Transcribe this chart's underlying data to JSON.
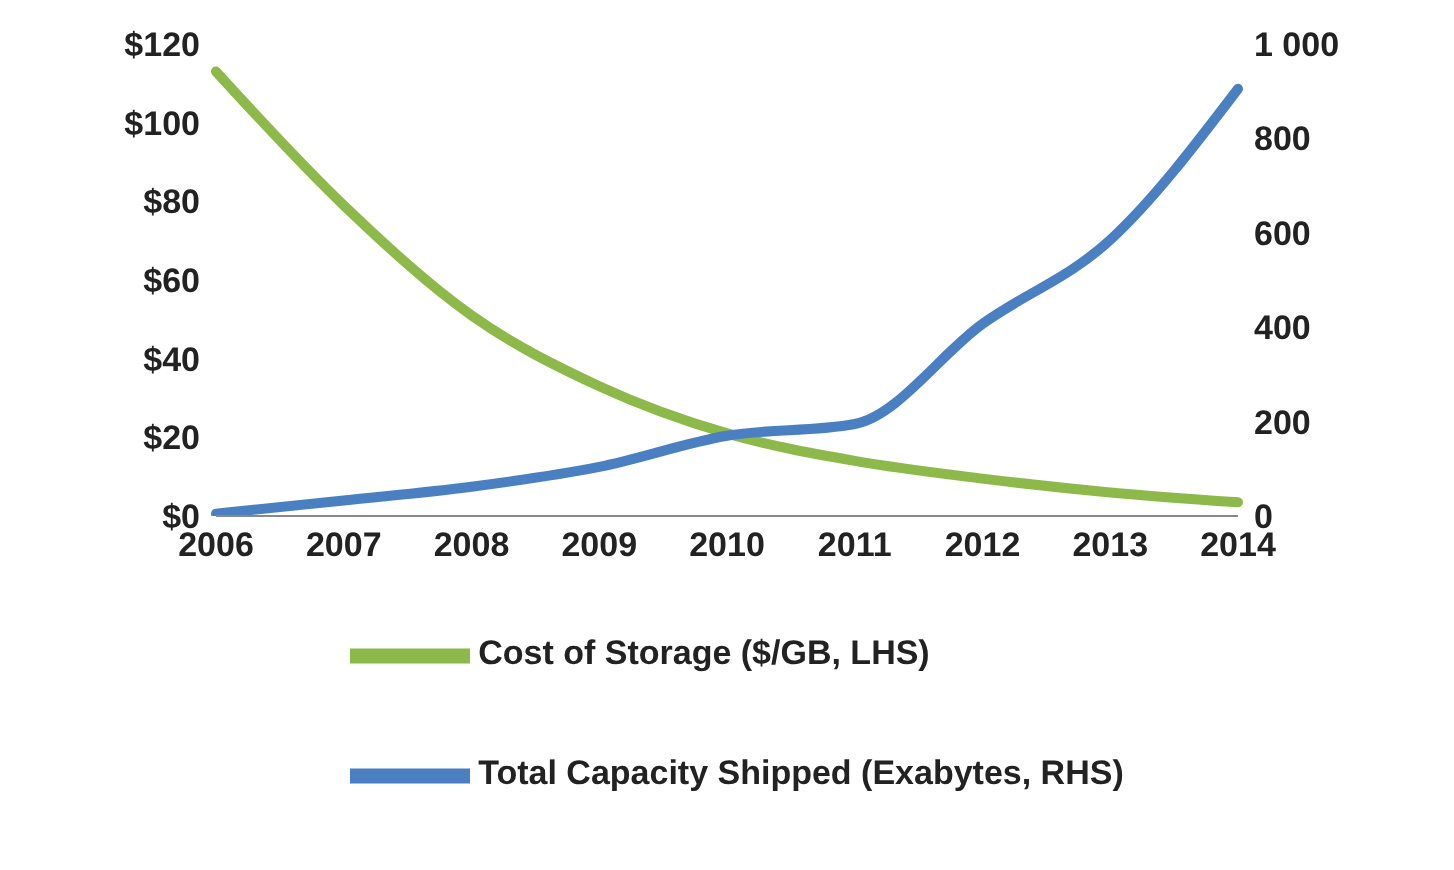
{
  "chart_data": {
    "type": "line",
    "categories": [
      "2006",
      "2007",
      "2008",
      "2009",
      "2010",
      "2011",
      "2012",
      "2013",
      "2014"
    ],
    "series": [
      {
        "name": "Cost of Storage ($/GB, LHS)",
        "color": "#8db84a",
        "values": [
          113,
          79,
          51,
          33,
          21,
          14,
          9.5,
          6,
          3.5
        ]
      },
      {
        "name": "Total Capacity Shipped (Exabytes, RHS)",
        "color": "#4a7fc1",
        "axis": "y2",
        "values": [
          5,
          33,
          62,
          104,
          170,
          195,
          407,
          585,
          905
        ]
      }
    ],
    "ylim": [
      0,
      120
    ],
    "yticks": [
      {
        "value": 0,
        "label": "$0"
      },
      {
        "value": 20,
        "label": "$20"
      },
      {
        "value": 40,
        "label": "$40"
      },
      {
        "value": 60,
        "label": "$60"
      },
      {
        "value": 80,
        "label": "$80"
      },
      {
        "value": 100,
        "label": "$100"
      },
      {
        "value": 120,
        "label": "$120"
      }
    ],
    "y2lim": [
      0,
      1000
    ],
    "y2ticks": [
      0,
      200,
      400,
      600,
      800,
      {
        "value": 1000,
        "label": "1 000"
      }
    ],
    "grid": false,
    "legend": "bottom",
    "marker": "none",
    "line_style": "solid"
  }
}
